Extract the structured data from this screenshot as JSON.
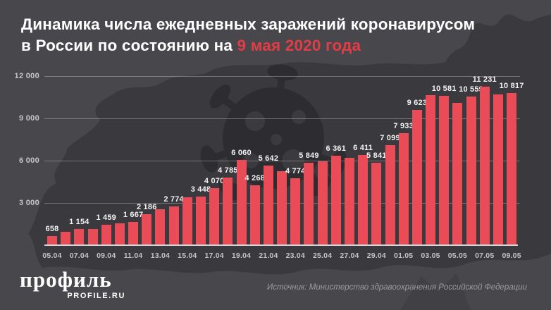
{
  "title": {
    "line1": "Динамика числа ежедневных заражений коронавирусом",
    "line2_prefix": "в России по состоянию на ",
    "line2_highlight": "9 мая 2020 года"
  },
  "colors": {
    "background": "#48484c",
    "map_silhouette": "#3a3a3e",
    "virus_silhouette": "#2d2d31",
    "virus_spots": "#3b3b3f",
    "bar": "#e94c57",
    "accent_red": "#e23c46",
    "title_text": "#ffffff",
    "axis_text": "#c6c6ca",
    "value_label_text": "#f2f2f3",
    "source_text": "#9a9a9f"
  },
  "chart_data": {
    "type": "bar",
    "title": "Динамика числа ежедневных заражений коронавирусом в России по состоянию на 9 мая 2020 года",
    "xlabel": "",
    "ylabel": "",
    "ylim": [
      0,
      12600
    ],
    "grid": true,
    "legend": "none",
    "x": [
      "05.04",
      "06.04",
      "07.04",
      "08.04",
      "09.04",
      "10.04",
      "11.04",
      "12.04",
      "13.04",
      "14.04",
      "15.04",
      "16.04",
      "17.04",
      "18.04",
      "19.04",
      "20.04",
      "21.04",
      "22.04",
      "23.04",
      "24.04",
      "25.04",
      "26.04",
      "27.04",
      "28.04",
      "29.04",
      "30.04",
      "01.05",
      "02.05",
      "03.05",
      "04.05",
      "05.05",
      "06.05",
      "07.05",
      "08.05",
      "09.05"
    ],
    "values": [
      658,
      954,
      1154,
      1175,
      1459,
      1550,
      1667,
      2186,
      2558,
      2774,
      3388,
      3448,
      4070,
      4785,
      6060,
      4268,
      5642,
      5236,
      4774,
      5849,
      5966,
      6361,
      6198,
      6411,
      5841,
      7099,
      7933,
      9623,
      10633,
      10581,
      10102,
      10559,
      11231,
      10699,
      10817
    ],
    "bar_labels": [
      "658",
      "",
      "1 154",
      "",
      "1 459",
      "",
      "1 667",
      "2 186",
      "",
      "2 774",
      "",
      "3 448",
      "4 070",
      "4 785",
      "6 060",
      "4 268",
      "5 642",
      "",
      "4 774",
      "5 849",
      "",
      "6 361",
      "",
      "6 411",
      "5 841",
      "7 099",
      "7 933",
      "9 623",
      "",
      "10 581",
      "",
      "10 559",
      "11 231",
      "",
      "10 817"
    ],
    "x_tick_labels": [
      "05.04",
      "07.04",
      "09.04",
      "11.04",
      "13.04",
      "15.04",
      "17.04",
      "19.04",
      "21.04",
      "23.04",
      "25.04",
      "27.04",
      "29.04",
      "01.05",
      "03.05",
      "05.05",
      "07.05",
      "09.05"
    ],
    "y_ticks": [
      3000,
      6000,
      9000,
      12000
    ],
    "y_tick_labels": [
      "3 000",
      "6 000",
      "9 000",
      "12 000"
    ]
  },
  "footer": {
    "logo_text": "профиль",
    "logo_sub": "PROFILE.RU",
    "source": "Источник: Министерство здравоохранения Российской Федерации"
  }
}
